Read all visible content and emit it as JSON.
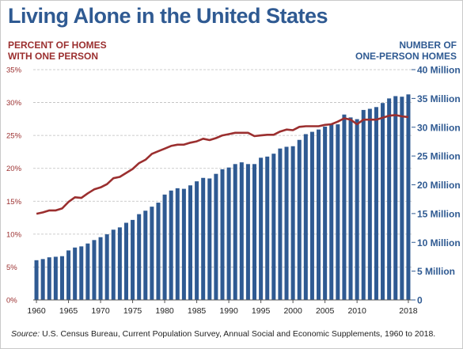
{
  "title": "Living Alone in the United States",
  "left_axis_label": [
    "PERCENT OF HOMES",
    "WITH ONE PERSON"
  ],
  "right_axis_label": [
    "NUMBER OF",
    "ONE-PERSON HOMES"
  ],
  "source_prefix": "Source:",
  "source_text": " U.S. Census Bureau, Current Population Survey, Annual Social and Economic Supplements, 1960 to 2018.",
  "colors": {
    "bars": "#2f5a92",
    "line": "#9b2f2f",
    "title": "#2f5a92",
    "left_axis": "#9b2f2f",
    "right_axis": "#2f5a92"
  },
  "chart_data": {
    "type": "bar",
    "title": "Living Alone in the United States",
    "x_ticks": [
      "1960",
      "1965",
      "1970",
      "1975",
      "1980",
      "1985",
      "1990",
      "1995",
      "2000",
      "2005",
      "2010",
      "2018"
    ],
    "x_tick_years": [
      1960,
      1965,
      1970,
      1975,
      1980,
      1985,
      1990,
      1995,
      2000,
      2005,
      2010,
      2018
    ],
    "y_left": {
      "label": "PERCENT OF HOMES WITH ONE PERSON",
      "range": [
        0,
        35
      ],
      "ticks": [
        "0%",
        "5%",
        "10%",
        "15%",
        "20%",
        "25%",
        "30%",
        "35%"
      ]
    },
    "y_right": {
      "label": "NUMBER OF ONE-PERSON HOMES",
      "range": [
        0,
        40
      ],
      "ticks": [
        "0",
        "5 Million",
        "10 Million",
        "15 Million",
        "20 Million",
        "25 Million",
        "30 Million",
        "35 Million",
        "40 Million"
      ]
    },
    "grid": true,
    "series": [
      {
        "type": "bar",
        "axis": "right",
        "unit": "millions",
        "x": [
          1960,
          1961,
          1962,
          1963,
          1964,
          1965,
          1966,
          1967,
          1968,
          1969,
          1970,
          1971,
          1972,
          1973,
          1974,
          1975,
          1976,
          1977,
          1978,
          1979,
          1980,
          1981,
          1982,
          1983,
          1984,
          1985,
          1986,
          1987,
          1988,
          1989,
          1990,
          1991,
          1992,
          1993,
          1994,
          1995,
          1996,
          1997,
          1998,
          1999,
          2000,
          2001,
          2002,
          2003,
          2004,
          2005,
          2006,
          2007,
          2008,
          2009,
          2010,
          2011,
          2012,
          2013,
          2014,
          2015,
          2016,
          2017,
          2018
        ],
        "values": [
          6.9,
          7.1,
          7.4,
          7.5,
          7.6,
          8.6,
          9.1,
          9.3,
          9.8,
          10.4,
          10.9,
          11.4,
          12.2,
          12.6,
          13.4,
          13.9,
          14.9,
          15.5,
          16.2,
          16.9,
          18.3,
          19.0,
          19.4,
          19.3,
          19.9,
          20.6,
          21.2,
          21.1,
          21.9,
          22.7,
          23.0,
          23.6,
          23.9,
          23.6,
          23.6,
          24.7,
          24.9,
          25.4,
          26.3,
          26.6,
          26.7,
          27.8,
          28.8,
          29.2,
          29.6,
          30.1,
          30.5,
          30.5,
          32.2,
          31.7,
          31.4,
          33.0,
          33.2,
          33.5,
          34.2,
          35.0,
          35.4,
          35.3,
          35.7
        ]
      },
      {
        "type": "line",
        "axis": "left",
        "unit": "percent",
        "x": [
          1960,
          1961,
          1962,
          1963,
          1964,
          1965,
          1966,
          1967,
          1968,
          1969,
          1970,
          1971,
          1972,
          1973,
          1974,
          1975,
          1976,
          1977,
          1978,
          1979,
          1980,
          1981,
          1982,
          1983,
          1984,
          1985,
          1986,
          1987,
          1988,
          1989,
          1990,
          1991,
          1992,
          1993,
          1994,
          1995,
          1996,
          1997,
          1998,
          1999,
          2000,
          2001,
          2002,
          2003,
          2004,
          2005,
          2006,
          2007,
          2008,
          2009,
          2010,
          2011,
          2012,
          2013,
          2014,
          2015,
          2016,
          2017,
          2018
        ],
        "values": [
          13.1,
          13.3,
          13.6,
          13.6,
          13.9,
          14.9,
          15.6,
          15.5,
          16.2,
          16.8,
          17.1,
          17.6,
          18.5,
          18.7,
          19.3,
          19.9,
          20.8,
          21.3,
          22.2,
          22.6,
          23.0,
          23.4,
          23.6,
          23.6,
          23.9,
          24.1,
          24.5,
          24.3,
          24.6,
          25.0,
          25.2,
          25.4,
          25.4,
          25.4,
          24.9,
          25.0,
          25.1,
          25.1,
          25.6,
          25.9,
          25.8,
          26.3,
          26.4,
          26.4,
          26.4,
          26.6,
          26.7,
          27.1,
          27.6,
          27.4,
          26.7,
          27.4,
          27.4,
          27.4,
          27.7,
          28.0,
          28.1,
          27.9,
          27.8
        ]
      }
    ]
  }
}
